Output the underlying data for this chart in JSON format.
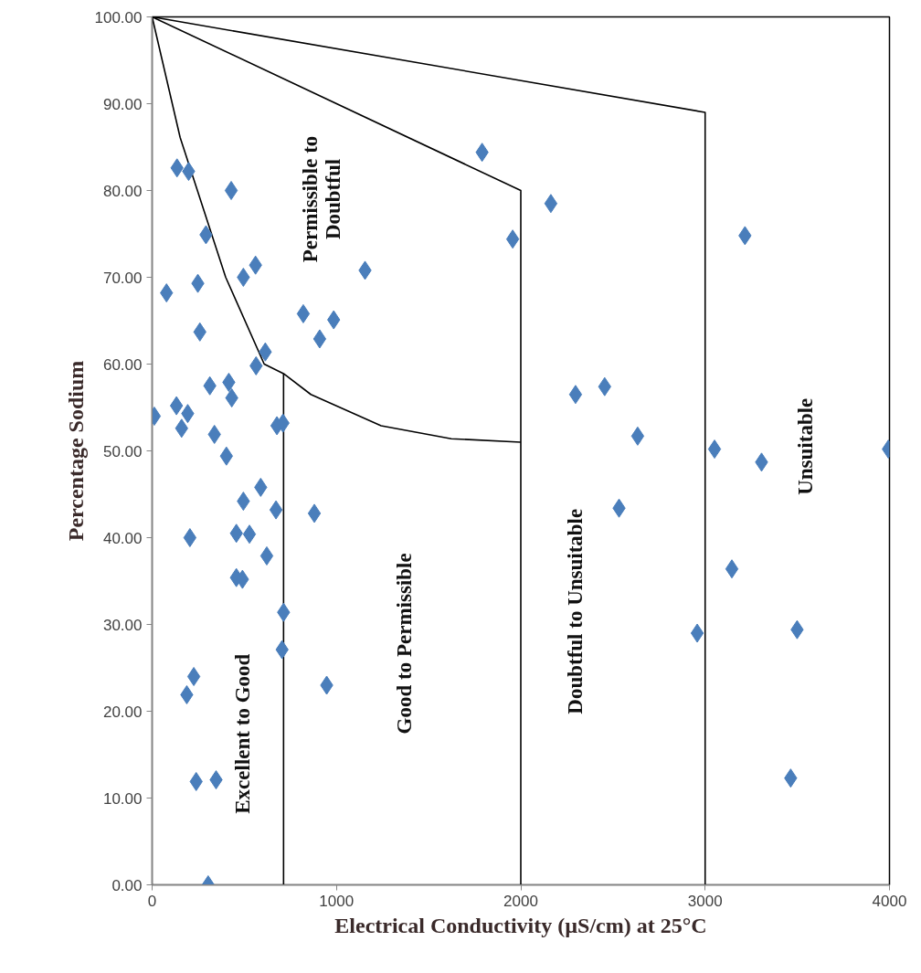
{
  "chart_data": {
    "type": "scatter",
    "xlabel": "Electrical Conductivity (µS/cm) at 25°C",
    "ylabel": "Percentage Sodium",
    "xlim": [
      0,
      4000
    ],
    "ylim": [
      0,
      100
    ],
    "xticks": [
      0,
      1000,
      2000,
      3000,
      4000
    ],
    "yticks": [
      {
        "value": 0,
        "label": "0.00"
      },
      {
        "value": 10,
        "label": "10.00"
      },
      {
        "value": 20,
        "label": "20.00"
      },
      {
        "value": 30,
        "label": "30.00"
      },
      {
        "value": 40,
        "label": "40.00"
      },
      {
        "value": 50,
        "label": "50.00"
      },
      {
        "value": 60,
        "label": "60.00"
      },
      {
        "value": 70,
        "label": "70.00"
      },
      {
        "value": 80,
        "label": "80.00"
      },
      {
        "value": 90,
        "label": "90.00"
      },
      {
        "value": 100,
        "label": "100.00"
      }
    ],
    "grid": false,
    "series": [
      {
        "marker": "diamond",
        "color": "#4a7ebb",
        "x": [
          135,
          198,
          429,
          292,
          561,
          495,
          248,
          78,
          820,
          1956,
          1155,
          985,
          909,
          880,
          947,
          259,
          614,
          564,
          313,
          416,
          432,
          12,
          132,
          193,
          160,
          677,
          710,
          338,
          403,
          589,
          495,
          672,
          205,
          457,
          528,
          622,
          457,
          490,
          713,
          705,
          226,
          188,
          239,
          347,
          304,
          1790,
          2163,
          3216,
          2297,
          2455,
          2634,
          3051,
          3306,
          3994,
          2533,
          3145,
          2957,
          3499,
          3464
        ],
        "values": [
          82.6,
          82.2,
          80.0,
          74.9,
          71.4,
          70.0,
          69.3,
          68.2,
          65.8,
          74.4,
          70.8,
          65.1,
          62.9,
          42.8,
          23.0,
          63.7,
          61.4,
          59.8,
          57.5,
          57.9,
          56.1,
          54.0,
          55.2,
          54.3,
          52.6,
          52.9,
          53.2,
          51.9,
          49.4,
          45.8,
          44.2,
          43.2,
          40.0,
          40.5,
          40.4,
          37.9,
          35.4,
          35.2,
          31.4,
          27.1,
          24.0,
          21.9,
          11.9,
          12.1,
          0.0,
          84.4,
          78.5,
          74.8,
          56.5,
          57.4,
          51.7,
          50.2,
          48.7,
          50.2,
          43.4,
          36.4,
          29.0,
          29.4,
          12.3
        ]
      },
      {
        "type": "line",
        "color": "#000000",
        "line_style": "solid",
        "x": [
          0,
          3000,
          3000
        ],
        "values": [
          100,
          89,
          0
        ]
      },
      {
        "type": "line",
        "color": "#000000",
        "line_style": "solid",
        "x": [
          0,
          2000,
          2000
        ],
        "values": [
          100,
          80,
          0
        ]
      },
      {
        "type": "line",
        "color": "#000000",
        "line_style": "solid",
        "x": [
          0,
          152,
          399,
          608,
          713,
          861,
          1242,
          1623,
          2000
        ],
        "values": [
          100,
          86.1,
          70.0,
          60.0,
          58.9,
          56.5,
          52.9,
          51.4,
          51.0
        ]
      },
      {
        "type": "line",
        "color": "#000000",
        "line_style": "solid",
        "x": [
          713,
          713
        ],
        "values": [
          58.9,
          0
        ]
      }
    ],
    "annotations": [
      "Excellent to Good",
      "Good to Permissible",
      "Doubtful to Unsuitable",
      "Unsuitable",
      "Permissible to\nDoubtful"
    ]
  }
}
